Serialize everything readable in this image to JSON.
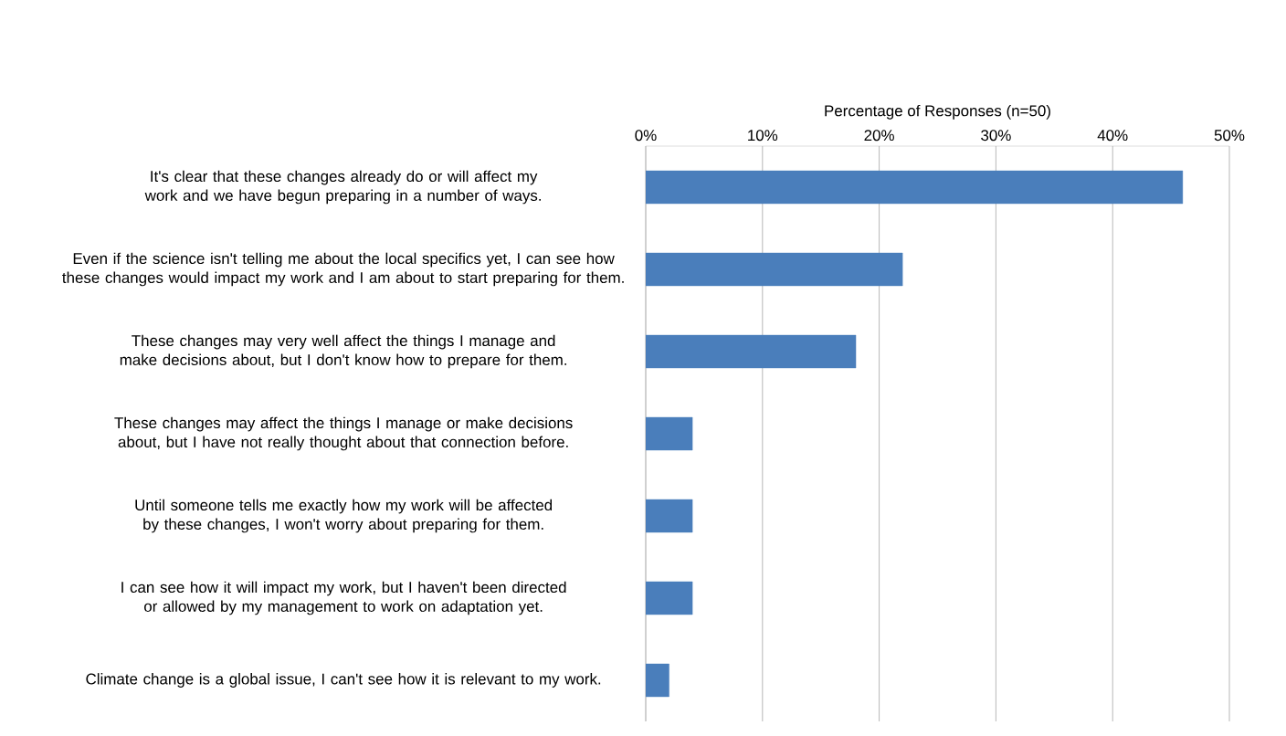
{
  "chart_data": {
    "type": "bar",
    "orientation": "horizontal",
    "xlabel": "Percentage of Responses (n=50)",
    "categories": [
      "It's clear that these changes already do or will affect my work and we have begun preparing in a number of ways.",
      "Even if the science isn't telling me about the local specifics yet, I can see how these changes would impact my work and I am about to start preparing for them.",
      "These changes may very well affect the things I manage and make decisions about, but I don't know how to prepare for them.",
      "These changes may affect the things I manage or make decisions about, but I have not really thought about that connection before.",
      "Until someone tells me exactly how my work will be affected by these changes, I won't worry about preparing for them.",
      "I can see how it will impact my work, but I haven't been directed or allowed by my management to work on adaptation yet.",
      "Climate change is a global issue, I can't see how it is relevant to my work."
    ],
    "values": [
      46,
      22,
      18,
      4,
      4,
      4,
      2
    ],
    "color": "#4a7ebb",
    "xlim": [
      0,
      50
    ],
    "xticks": [
      {
        "value": 0,
        "label": "0%"
      },
      {
        "value": 10,
        "label": "10%"
      },
      {
        "value": 20,
        "label": "20%"
      },
      {
        "value": 30,
        "label": "30%"
      },
      {
        "value": 40,
        "label": "40%"
      },
      {
        "value": 50,
        "label": "50%"
      }
    ],
    "grid": "x"
  }
}
